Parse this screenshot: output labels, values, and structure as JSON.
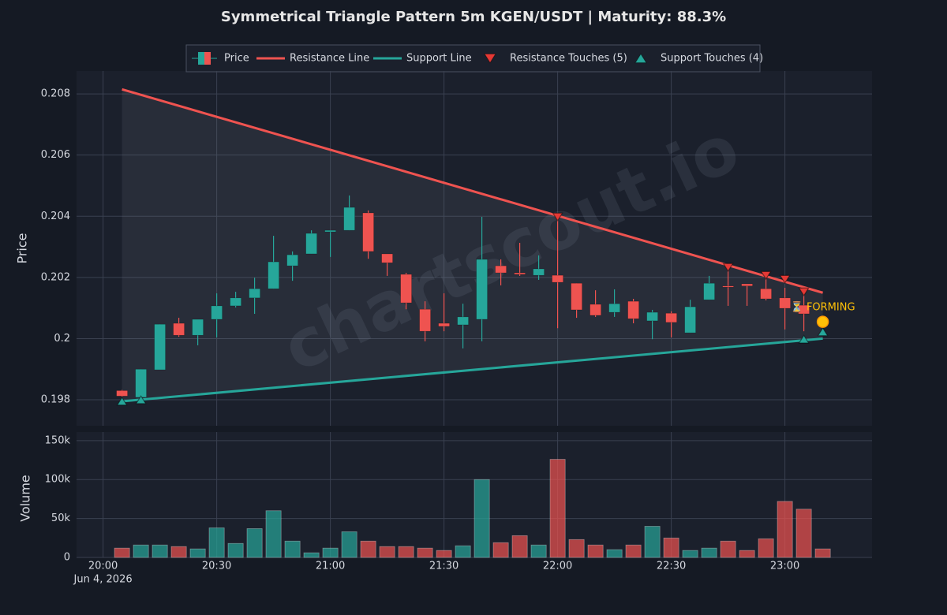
{
  "chart_data": [
    {
      "type": "candlestick",
      "title": "Symmetrical Triangle Pattern 5m KGEN/USDT | Maturity: 88.3%",
      "ylabel": "Price",
      "watermark": "chartscout.io",
      "x": [
        "2026-06-04 20:05",
        "2026-06-04 20:10",
        "2026-06-04 20:15",
        "2026-06-04 20:20",
        "2026-06-04 20:25",
        "2026-06-04 20:30",
        "2026-06-04 20:35",
        "2026-06-04 20:40",
        "2026-06-04 20:45",
        "2026-06-04 20:50",
        "2026-06-04 20:55",
        "2026-06-04 21:00",
        "2026-06-04 21:05",
        "2026-06-04 21:10",
        "2026-06-04 21:15",
        "2026-06-04 21:20",
        "2026-06-04 21:25",
        "2026-06-04 21:30",
        "2026-06-04 21:35",
        "2026-06-04 21:40",
        "2026-06-04 21:45",
        "2026-06-04 21:50",
        "2026-06-04 21:55",
        "2026-06-04 22:00",
        "2026-06-04 22:05",
        "2026-06-04 22:10",
        "2026-06-04 22:15",
        "2026-06-04 22:20",
        "2026-06-04 22:25",
        "2026-06-04 22:30",
        "2026-06-04 22:35",
        "2026-06-04 22:40",
        "2026-06-04 22:45",
        "2026-06-04 22:50",
        "2026-06-04 22:55",
        "2026-06-04 23:00",
        "2026-06-04 23:05"
      ],
      "open": [
        0.1983,
        0.19808,
        0.19898,
        0.2005,
        0.20011,
        0.20063,
        0.20107,
        0.20133,
        0.20163,
        0.20238,
        0.20277,
        0.20349,
        0.20354,
        0.20411,
        0.20277,
        0.2021,
        0.20096,
        0.2005,
        0.20045,
        0.20063,
        0.20238,
        0.20215,
        0.20207,
        0.20207,
        0.20181,
        0.20112,
        0.20086,
        0.20122,
        0.20058,
        0.20083,
        0.20019,
        0.20127,
        0.20172,
        0.20179,
        0.20163,
        0.20133,
        0.20109
      ],
      "high": [
        0.19832,
        0.199,
        0.20047,
        0.20068,
        0.20063,
        0.20148,
        0.20153,
        0.20199,
        0.20336,
        0.20285,
        0.20354,
        0.20354,
        0.20468,
        0.20419,
        0.20277,
        0.20215,
        0.20122,
        0.20148,
        0.20114,
        0.20398,
        0.20259,
        0.20313,
        0.20272,
        0.20398,
        0.20181,
        0.20158,
        0.20161,
        0.2013,
        0.20094,
        0.20089,
        0.20127,
        0.20205,
        0.20231,
        0.20179,
        0.20218,
        0.20166,
        0.2015
      ],
      "low": [
        0.1981,
        0.19808,
        0.19898,
        0.20006,
        0.19978,
        0.20004,
        0.20102,
        0.20081,
        0.20163,
        0.20189,
        0.20277,
        0.20267,
        0.20354,
        0.20261,
        0.20205,
        0.20096,
        0.19991,
        0.20024,
        0.19968,
        0.19991,
        0.20174,
        0.20205,
        0.20192,
        0.20034,
        0.20068,
        0.20071,
        0.20071,
        0.2005,
        0.19998,
        0.20004,
        0.20019,
        0.20127,
        0.20107,
        0.20107,
        0.20125,
        0.2003,
        0.20024
      ],
      "close": [
        0.19812,
        0.199,
        0.20047,
        0.20011,
        0.20063,
        0.20107,
        0.20133,
        0.20163,
        0.20251,
        0.20274,
        0.20344,
        0.20354,
        0.20429,
        0.20285,
        0.20248,
        0.20117,
        0.20024,
        0.2004,
        0.20071,
        0.20259,
        0.20215,
        0.2021,
        0.20228,
        0.20184,
        0.20094,
        0.20076,
        0.20114,
        0.20065,
        0.20086,
        0.20053,
        0.20104,
        0.20181,
        0.2017,
        0.20172,
        0.2013,
        0.20099,
        0.20081
      ],
      "up_color": "#26a69a",
      "down_color": "#ef5350",
      "price_name": "Price",
      "lines": [
        {
          "name": "Resistance Line",
          "color": "#ef5350",
          "x": [
            "2026-06-04 20:05",
            "2026-06-04 23:10"
          ],
          "values": [
            0.20815,
            0.2015
          ]
        },
        {
          "name": "Support Line",
          "color": "#26a69a",
          "x": [
            "2026-06-04 20:05",
            "2026-06-04 23:10"
          ],
          "values": [
            0.19795,
            0.2
          ]
        }
      ],
      "touches": [
        {
          "name": "Resistance Touches (5)",
          "marker": "triangle-down",
          "color": "#e53935",
          "x": [
            "2026-06-04 22:00",
            "2026-06-04 22:45",
            "2026-06-04 22:55",
            "2026-06-04 23:00",
            "2026-06-04 23:05"
          ],
          "values": [
            0.20398,
            0.20233,
            0.20207,
            0.20194,
            0.20153
          ]
        },
        {
          "name": "Support Touches (4)",
          "marker": "triangle-up",
          "color": "#26a69a",
          "x": [
            "2026-06-04 20:05",
            "2026-06-04 20:10",
            "2026-06-04 23:05",
            "2026-06-04 23:10"
          ],
          "values": [
            0.19795,
            0.198,
            0.19998,
            0.20022
          ]
        }
      ],
      "forming": {
        "label": "⏳ FORMING",
        "x": "2026-06-04 23:10",
        "value": 0.20055,
        "color": "#ffc107"
      },
      "xlim": [
        "2026-06-04 19:53",
        "2026-06-04 23:23"
      ],
      "ylim": [
        0.19715,
        0.20875
      ],
      "yticks": [
        0.198,
        0.2,
        0.202,
        0.204,
        0.206,
        0.208
      ],
      "grid": true
    },
    {
      "type": "bar",
      "ylabel": "Volume",
      "x": [
        "2026-06-04 20:05",
        "2026-06-04 20:10",
        "2026-06-04 20:15",
        "2026-06-04 20:20",
        "2026-06-04 20:25",
        "2026-06-04 20:30",
        "2026-06-04 20:35",
        "2026-06-04 20:40",
        "2026-06-04 20:45",
        "2026-06-04 20:50",
        "2026-06-04 20:55",
        "2026-06-04 21:00",
        "2026-06-04 21:05",
        "2026-06-04 21:10",
        "2026-06-04 21:15",
        "2026-06-04 21:20",
        "2026-06-04 21:25",
        "2026-06-04 21:30",
        "2026-06-04 21:35",
        "2026-06-04 21:40",
        "2026-06-04 21:45",
        "2026-06-04 21:50",
        "2026-06-04 21:55",
        "2026-06-04 22:00",
        "2026-06-04 22:05",
        "2026-06-04 22:10",
        "2026-06-04 22:15",
        "2026-06-04 22:20",
        "2026-06-04 22:25",
        "2026-06-04 22:30",
        "2026-06-04 22:35",
        "2026-06-04 22:40",
        "2026-06-04 22:45",
        "2026-06-04 22:50",
        "2026-06-04 22:55",
        "2026-06-04 23:00",
        "2026-06-04 23:05",
        "2026-06-04 23:10"
      ],
      "values": [
        12000,
        16000,
        16000,
        14000,
        11000,
        38000,
        18000,
        37000,
        60000,
        21000,
        6000,
        12000,
        33000,
        21000,
        14000,
        14000,
        12000,
        9000,
        15000,
        100000,
        19000,
        28000,
        16000,
        126000,
        23000,
        16000,
        10000,
        16000,
        40000,
        25000,
        9000,
        12000,
        21000,
        9000,
        24000,
        72000,
        62000,
        11000
      ],
      "colors": [
        "#ef5350",
        "#26a69a",
        "#26a69a",
        "#ef5350",
        "#26a69a",
        "#26a69a",
        "#26a69a",
        "#26a69a",
        "#26a69a",
        "#26a69a",
        "#26a69a",
        "#26a69a",
        "#26a69a",
        "#ef5350",
        "#ef5350",
        "#ef5350",
        "#ef5350",
        "#ef5350",
        "#26a69a",
        "#26a69a",
        "#ef5350",
        "#ef5350",
        "#26a69a",
        "#ef5350",
        "#ef5350",
        "#ef5350",
        "#26a69a",
        "#ef5350",
        "#26a69a",
        "#ef5350",
        "#26a69a",
        "#26a69a",
        "#ef5350",
        "#ef5350",
        "#ef5350",
        "#ef5350",
        "#ef5350",
        "#ef5350"
      ],
      "xlim": [
        "2026-06-04 19:53",
        "2026-06-04 23:23"
      ],
      "xticks": [
        {
          "value": "2026-06-04 20:00",
          "label": "20:00"
        },
        {
          "value": "2026-06-04 20:30",
          "label": "20:30"
        },
        {
          "value": "2026-06-04 21:00",
          "label": "21:00"
        },
        {
          "value": "2026-06-04 21:30",
          "label": "21:30"
        },
        {
          "value": "2026-06-04 22:00",
          "label": "22:00"
        },
        {
          "value": "2026-06-04 22:30",
          "label": "22:30"
        },
        {
          "value": "2026-06-04 23:00",
          "label": "23:00"
        }
      ],
      "date_label": "Jun 4, 2026",
      "ylim": [
        0,
        161000
      ],
      "yticks": [
        0,
        {
          "value": 50000,
          "label": "50k"
        },
        {
          "value": 100000,
          "label": "100k"
        },
        {
          "value": 150000,
          "label": "150k"
        }
      ],
      "grid": true
    }
  ]
}
